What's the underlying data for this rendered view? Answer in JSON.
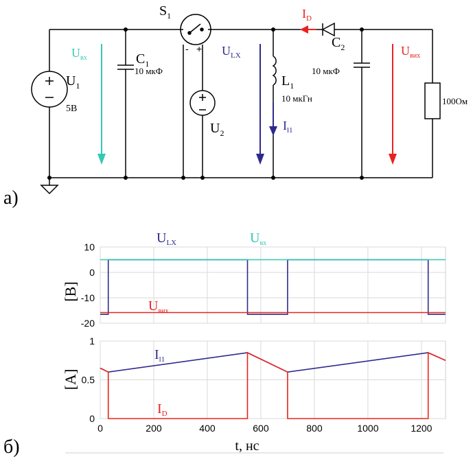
{
  "circuit": {
    "part_label": "а)",
    "source": {
      "name": "U",
      "sub": "1",
      "value": "5В"
    },
    "capacitor_in": {
      "name": "C",
      "sub": "1",
      "value": "10 мкФ"
    },
    "switch": {
      "name": "S",
      "sub": "1",
      "minus": "-",
      "plus": "+"
    },
    "source_ctrl": {
      "name": "U",
      "sub": "2"
    },
    "inductor": {
      "name": "L",
      "sub": "1",
      "value": "10 мкГн"
    },
    "capacitor_out": {
      "name": "C",
      "sub": "2",
      "value": "10 мкФ"
    },
    "resistor": {
      "value": "100Ом"
    },
    "arrows": {
      "u_in": {
        "name": "U",
        "sub": "вх"
      },
      "u_lx": {
        "name": "U",
        "sub": "LX"
      },
      "i_l": {
        "name": "I",
        "sub": "l1"
      },
      "i_d": {
        "name": "I",
        "sub": "D"
      },
      "u_out": {
        "name": "U",
        "sub": "вих"
      }
    },
    "colors": {
      "u_in": "#34c9b6",
      "u_lx": "#2e2a8c",
      "i_l": "#2e2a8c",
      "i_d": "#e8231f",
      "u_out": "#e8231f",
      "wire": "#000000"
    }
  },
  "plots": {
    "part_label": "б)",
    "xlabel": "t, нс",
    "x_ticks": [
      0,
      200,
      400,
      600,
      800,
      1000,
      1200
    ],
    "xlim": [
      0,
      1290
    ],
    "top": {
      "ylabel": "[В]",
      "ylim": [
        -20,
        10
      ],
      "y_ticks": [
        10,
        0,
        -10,
        -20
      ],
      "labels": {
        "u_lx": {
          "name": "U",
          "sub": "LX"
        },
        "u_in": {
          "name": "U",
          "sub": "вх"
        },
        "u_out": {
          "name": "U",
          "sub": "вих"
        }
      }
    },
    "bottom": {
      "ylabel": "[А]",
      "ylim": [
        0,
        1
      ],
      "y_ticks": [
        1,
        0.5,
        0
      ],
      "labels": {
        "i_l": {
          "name": "I",
          "sub": "l1"
        },
        "i_d": {
          "name": "I",
          "sub": "D"
        }
      }
    }
  },
  "chart_data": [
    {
      "type": "line",
      "ylabel": "[В]",
      "xlabel": "t, нс",
      "xlim": [
        0,
        1290
      ],
      "ylim": [
        -20,
        10
      ],
      "grid": true,
      "series": [
        {
          "name": "U_LX",
          "color": "#2e2a8c",
          "x": [
            0,
            30,
            30,
            550,
            550,
            700,
            700,
            1225,
            1225,
            1290
          ],
          "y": [
            -16.5,
            -16.5,
            5,
            5,
            -16.5,
            -16.5,
            5,
            5,
            -16.5,
            -16.5
          ]
        },
        {
          "name": "U_вх",
          "color": "#34c9b6",
          "x": [
            0,
            1290
          ],
          "y": [
            5,
            5
          ]
        },
        {
          "name": "U_вих",
          "color": "#e8231f",
          "x": [
            0,
            1290
          ],
          "y": [
            -15.8,
            -15.8
          ]
        }
      ]
    },
    {
      "type": "line",
      "ylabel": "[А]",
      "xlabel": "t, нс",
      "xlim": [
        0,
        1290
      ],
      "ylim": [
        0,
        1
      ],
      "grid": true,
      "series": [
        {
          "name": "I_l1",
          "color": "#2e2a8c",
          "x": [
            0,
            30,
            550,
            700,
            1225,
            1290
          ],
          "y": [
            0.65,
            0.6,
            0.85,
            0.6,
            0.85,
            0.75
          ]
        },
        {
          "name": "I_D",
          "color": "#e8231f",
          "x": [
            0,
            30,
            30,
            550,
            550,
            700,
            700,
            1225,
            1225,
            1290
          ],
          "y": [
            0.65,
            0.6,
            0,
            0,
            0.85,
            0.6,
            0,
            0,
            0.85,
            0.75
          ]
        }
      ]
    }
  ]
}
